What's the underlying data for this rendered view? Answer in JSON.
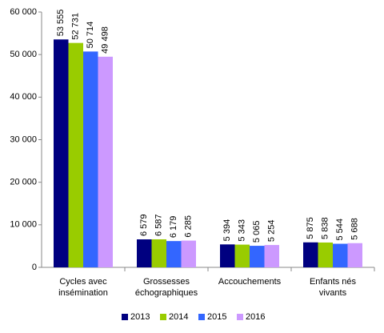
{
  "chart_data": {
    "type": "bar",
    "categories": [
      "Cycles avec insémination",
      "Grossesses échographiques",
      "Accouchements",
      "Enfants nés vivants"
    ],
    "series": [
      {
        "name": "2013",
        "color": "#000080",
        "values": [
          53555,
          6579,
          5394,
          5875
        ],
        "value_labels": [
          "53 555",
          "6 579",
          "5 394",
          "5 875"
        ]
      },
      {
        "name": "2014",
        "color": "#99cc00",
        "values": [
          52731,
          6587,
          5343,
          5838
        ],
        "value_labels": [
          "52 731",
          "6 587",
          "5 343",
          "5 838"
        ]
      },
      {
        "name": "2015",
        "color": "#3366ff",
        "values": [
          50714,
          6179,
          5065,
          5544
        ],
        "value_labels": [
          "50 714",
          "6 179",
          "5 065",
          "5 544"
        ]
      },
      {
        "name": "2016",
        "color": "#cc99ff",
        "values": [
          49498,
          6285,
          5254,
          5688
        ],
        "value_labels": [
          "49 498",
          "6 285",
          "5 254",
          "5 688"
        ]
      }
    ],
    "ylim": [
      0,
      60000
    ],
    "yticks": [
      0,
      {
        "value": 10000,
        "label": "10 000"
      },
      {
        "value": 20000,
        "label": "20 000"
      },
      {
        "value": 30000,
        "label": "30 000"
      },
      {
        "value": 40000,
        "label": "40 000"
      },
      {
        "value": 50000,
        "label": "50 000"
      },
      {
        "value": 60000,
        "label": "60 000"
      }
    ],
    "grid": false,
    "legend": "bottom"
  }
}
